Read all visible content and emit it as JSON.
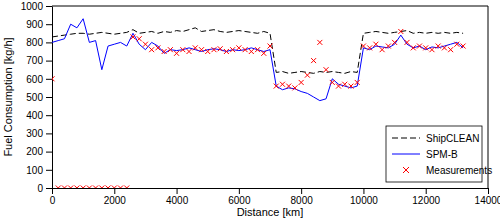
{
  "chart_data": {
    "type": "line",
    "x_label": "Distance [km]",
    "y_label": "Fuel Consumption [kg/h]",
    "x": [
      0,
      200,
      400,
      600,
      800,
      1000,
      1200,
      1400,
      1600,
      1800,
      2000,
      2200,
      2400,
      2600,
      2800,
      3000,
      3200,
      3400,
      3600,
      3800,
      4000,
      4200,
      4400,
      4600,
      4800,
      5000,
      5200,
      5400,
      5600,
      5800,
      6000,
      6200,
      6400,
      6600,
      6800,
      7000,
      7200,
      7400,
      7600,
      7800,
      8000,
      8200,
      8400,
      8600,
      8800,
      9000,
      9200,
      9400,
      9600,
      9800,
      10000,
      10200,
      10400,
      10600,
      10800,
      11000,
      11200,
      11400,
      11600,
      11800,
      12000,
      12200,
      12400,
      12600,
      12800,
      13000,
      13200
    ],
    "series": [
      {
        "name": "ShipCLEAN",
        "color": "#000000",
        "line_style": "dashed",
        "type": "line",
        "values": [
          830,
          835,
          840,
          845,
          850,
          850,
          845,
          850,
          855,
          850,
          845,
          850,
          855,
          870,
          850,
          855,
          860,
          850,
          860,
          855,
          865,
          860,
          870,
          880,
          860,
          865,
          870,
          860,
          855,
          860,
          865,
          860,
          855,
          850,
          860,
          850,
          635,
          640,
          630,
          635,
          640,
          635,
          630,
          640,
          635,
          640,
          635,
          630,
          640,
          635,
          850,
          855,
          860,
          855,
          850,
          855,
          860,
          865,
          850,
          855,
          850,
          855,
          850,
          855,
          850,
          855,
          850
        ]
      },
      {
        "name": "SPM-B",
        "color": "#0000ff",
        "line_style": "solid",
        "type": "line",
        "values": [
          800,
          810,
          820,
          900,
          880,
          930,
          800,
          810,
          650,
          780,
          790,
          800,
          780,
          850,
          790,
          760,
          800,
          780,
          740,
          760,
          755,
          760,
          770,
          760,
          750,
          760,
          765,
          760,
          750,
          760,
          755,
          760,
          770,
          760,
          750,
          760,
          560,
          540,
          550,
          545,
          530,
          520,
          500,
          480,
          490,
          600,
          570,
          560,
          550,
          560,
          770,
          760,
          780,
          775,
          770,
          790,
          840,
          790,
          770,
          780,
          760,
          775,
          770,
          780,
          790,
          800,
          770
        ]
      },
      {
        "name": "Measurements",
        "color": "#ff0000",
        "type": "scatter",
        "marker": "x",
        "values": [
          600,
          0,
          0,
          0,
          0,
          0,
          0,
          0,
          0,
          0,
          0,
          0,
          0,
          830,
          820,
          790,
          760,
          770,
          750,
          760,
          740,
          760,
          750,
          770,
          760,
          750,
          760,
          765,
          750,
          760,
          770,
          760,
          750,
          760,
          740,
          780,
          560,
          570,
          560,
          550,
          580,
          620,
          700,
          800,
          650,
          580,
          560,
          570,
          560,
          580,
          780,
          770,
          790,
          760,
          780,
          800,
          860,
          800,
          770,
          780,
          770,
          760,
          780,
          770,
          760,
          790,
          780
        ]
      }
    ],
    "xlim": [
      0,
      14000
    ],
    "xticks": [
      0,
      2000,
      4000,
      6000,
      8000,
      10000,
      12000,
      14000
    ],
    "ylim": [
      0,
      1000
    ],
    "yticks": [
      0,
      100,
      200,
      300,
      400,
      500,
      600,
      700,
      800,
      900,
      1000
    ],
    "grid": false,
    "legend": "lower right"
  }
}
